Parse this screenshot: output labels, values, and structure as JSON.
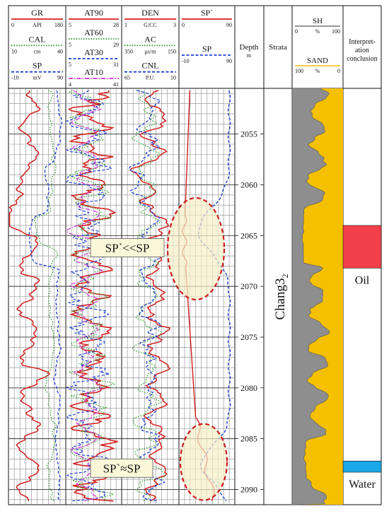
{
  "tracks": {
    "track1": {
      "curves": [
        {
          "name": "GR",
          "unit": "API",
          "min": "0",
          "max": "180",
          "color": "#d42020",
          "dash": "solid"
        },
        {
          "name": "CAL",
          "unit": "cm",
          "min": "10",
          "max": "40",
          "color": "#2a9a2a",
          "dash": "dotted"
        },
        {
          "name": "SP",
          "unit": "mV",
          "min": "-10",
          "max": "90",
          "color": "#1f3fd0",
          "dash": "dashed"
        }
      ]
    },
    "track2": {
      "curves": [
        {
          "name": "AT90",
          "unit": "",
          "min": "5",
          "max": "28",
          "color": "#d42020",
          "dash": "solid"
        },
        {
          "name": "AT60",
          "unit": "",
          "min": "5",
          "max": "29",
          "color": "#2a9a2a",
          "dash": "dotted"
        },
        {
          "name": "AT30",
          "unit": "",
          "min": "5",
          "max": "31",
          "color": "#1f3fd0",
          "dash": "dashed"
        },
        {
          "name": "AT10",
          "unit": "",
          "min": "4",
          "max": "41",
          "color": "#d030d0",
          "dash": "dashdot"
        }
      ]
    },
    "track3": {
      "curves": [
        {
          "name": "DEN",
          "unit": "G/CC",
          "min": "1",
          "max": "3",
          "color": "#d42020",
          "dash": "solid"
        },
        {
          "name": "AC",
          "unit": "μs/m",
          "min": "350",
          "max": "150",
          "color": "#2a9a2a",
          "dash": "dotted"
        },
        {
          "name": "CNL",
          "unit": "P.U.",
          "min": "65",
          "max": "10",
          "color": "#1f3fd0",
          "dash": "dashed"
        }
      ]
    },
    "track4": {
      "curves": [
        {
          "name": "SP`",
          "unit": "",
          "min": "0",
          "max": "90",
          "color": "#d42020",
          "dash": "solid"
        },
        {
          "name": "SP",
          "unit": "",
          "min": "-10",
          "max": "90",
          "color": "#1f3fd0",
          "dash": "dashed"
        }
      ]
    },
    "depth": {
      "title": "Depth",
      "unit": "m",
      "labels": [
        "2055",
        "2060",
        "2065",
        "2070",
        "2075",
        "2080",
        "2085",
        "2090"
      ]
    },
    "strata": {
      "title": "Strata",
      "name": "Chang3",
      "subscript": "2"
    },
    "lith": {
      "curves": [
        {
          "name": "SH",
          "unit": "%",
          "min": "0",
          "max": "100",
          "color": "#777777"
        },
        {
          "name": "SAND",
          "unit": "%",
          "min": "100",
          "max": "0",
          "color": "#f5c000"
        }
      ]
    },
    "interpretation": {
      "title_lines": [
        "Interpret-",
        "ation",
        "conclusion"
      ],
      "zones": [
        {
          "label": "Oil",
          "color": "#f2404a",
          "top_depth": 2064,
          "bottom_depth": 2068.2
        },
        {
          "label": "Water",
          "color": "#1aa8e8",
          "top_depth": 2087.2,
          "bottom_depth": 2088.3
        }
      ]
    }
  },
  "annotations": [
    {
      "text": "SP`<<SP",
      "depth": 2066.2
    },
    {
      "text": "SP`≈SP",
      "depth": 2087.9
    }
  ],
  "depth_range": [
    2050.5,
    2091.5
  ]
}
